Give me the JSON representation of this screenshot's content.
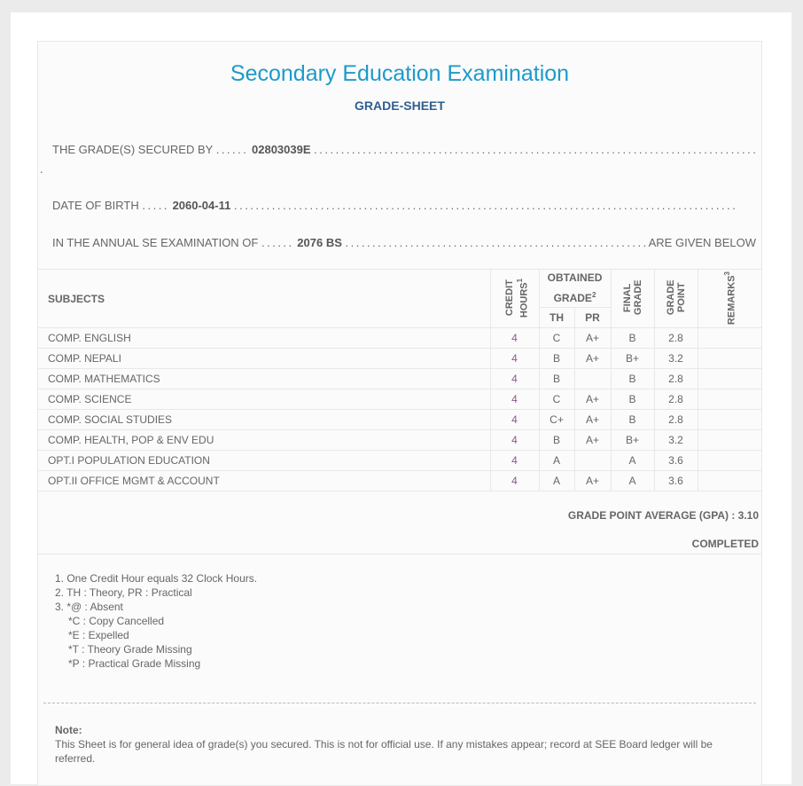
{
  "header": {
    "title": "Secondary Education Examination",
    "subtitle": "GRADE-SHEET"
  },
  "student": {
    "secured_label": "THE GRADE(S) SECURED BY",
    "symbol_no": "02803039E",
    "dob_label": "DATE OF BIRTH",
    "dob": "2060-04-11",
    "exam_label": "IN THE ANNUAL SE EXAMINATION OF",
    "exam_year": "2076 BS",
    "given_below": "ARE GIVEN BELOW"
  },
  "table": {
    "headers": {
      "subjects": "SUBJECTS",
      "credit_hours": "CREDIT HOURS",
      "credit_sup": "1",
      "obtained": "OBTAINED GRADE",
      "obtained_sup": "2",
      "th": "TH",
      "pr": "PR",
      "final": "FINAL GRADE",
      "point": "GRADE POINT",
      "remarks": "REMARKS",
      "remarks_sup": "3"
    },
    "rows": [
      {
        "subject": "COMP. ENGLISH",
        "ch": "4",
        "th": "C",
        "pr": "A+",
        "final": "B",
        "gp": "2.8",
        "remarks": ""
      },
      {
        "subject": "COMP. NEPALI",
        "ch": "4",
        "th": "B",
        "pr": "A+",
        "final": "B+",
        "gp": "3.2",
        "remarks": ""
      },
      {
        "subject": "COMP. MATHEMATICS",
        "ch": "4",
        "th": "B",
        "pr": "",
        "final": "B",
        "gp": "2.8",
        "remarks": ""
      },
      {
        "subject": "COMP. SCIENCE",
        "ch": "4",
        "th": "C",
        "pr": "A+",
        "final": "B",
        "gp": "2.8",
        "remarks": ""
      },
      {
        "subject": "COMP. SOCIAL STUDIES",
        "ch": "4",
        "th": "C+",
        "pr": "A+",
        "final": "B",
        "gp": "2.8",
        "remarks": ""
      },
      {
        "subject": "COMP. HEALTH, POP & ENV EDU",
        "ch": "4",
        "th": "B",
        "pr": "A+",
        "final": "B+",
        "gp": "3.2",
        "remarks": ""
      },
      {
        "subject": "OPT.I POPULATION EDUCATION",
        "ch": "4",
        "th": "A",
        "pr": "",
        "final": "A",
        "gp": "3.6",
        "remarks": ""
      },
      {
        "subject": "OPT.II OFFICE MGMT & ACCOUNT",
        "ch": "4",
        "th": "A",
        "pr": "A+",
        "final": "A",
        "gp": "3.6",
        "remarks": ""
      }
    ]
  },
  "summary": {
    "gpa": "GRADE POINT AVERAGE (GPA) : 3.10",
    "status": "COMPLETED"
  },
  "legend": [
    "1. One Credit Hour equals 32 Clock Hours.",
    "2. TH : Theory, PR : Practical",
    "3. *@ : Absent",
    "*C : Copy Cancelled",
    "*E : Expelled",
    "*T : Theory Grade Missing",
    "*P : Practical Grade Missing"
  ],
  "note": {
    "title": "Note:",
    "text": "This Sheet is for general idea of grade(s) you secured. This is not for official use. If any mistakes appear; record at SEE Board ledger will be referred."
  }
}
